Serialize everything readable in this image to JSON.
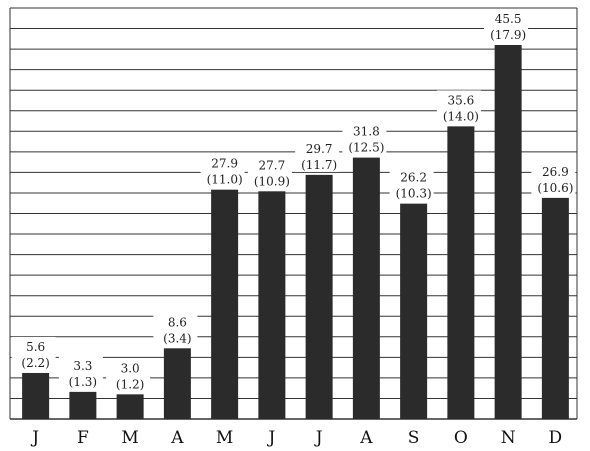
{
  "chart_data": {
    "type": "bar",
    "categories": [
      "J",
      "F",
      "M",
      "A",
      "M",
      "J",
      "J",
      "A",
      "S",
      "O",
      "N",
      "D"
    ],
    "series": [
      {
        "values": [
          5.6,
          3.3,
          3.0,
          8.6,
          27.9,
          27.7,
          29.7,
          31.8,
          26.2,
          35.6,
          45.5,
          26.9
        ]
      }
    ],
    "secondary_labels": [
      "(2.2)",
      "(1.3)",
      "(1.2)",
      "(3.4)",
      "(11.0)",
      "(10.9)",
      "(11.7)",
      "(12.5)",
      "(10.3)",
      "(14.0)",
      "(17.9)",
      "(10.6)"
    ],
    "value_labels": [
      "5.6",
      "3.3",
      "3.0",
      "8.6",
      "27.9",
      "27.7",
      "29.7",
      "31.8",
      "26.2",
      "35.6",
      "45.5",
      "26.9"
    ],
    "ylim": [
      0,
      50
    ],
    "grid": true,
    "bar_color": "#2b2b2b",
    "grid_color": "#333333"
  }
}
